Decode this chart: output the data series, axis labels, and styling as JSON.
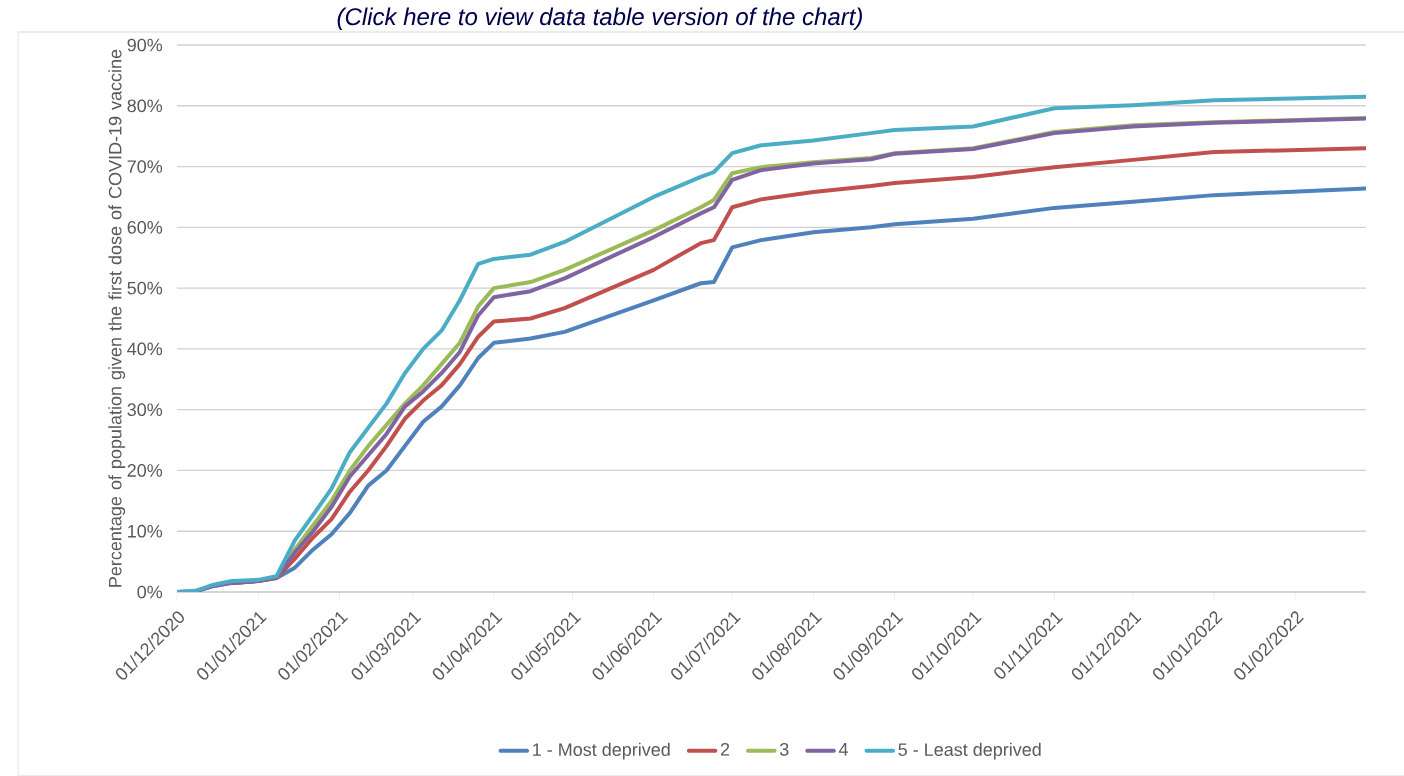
{
  "chart_data": {
    "type": "line",
    "ylabel": "Percentage of population given the first dose of COVID-19 vaccine",
    "annotations": [
      "(Click here to view data table version of the chart)"
    ],
    "x": [
      "2020-12-01",
      "2020-12-08",
      "2020-12-15",
      "2020-12-22",
      "2021-01-01",
      "2021-01-08",
      "2021-01-15",
      "2021-01-22",
      "2021-01-29",
      "2021-02-05",
      "2021-02-12",
      "2021-02-19",
      "2021-02-26",
      "2021-03-05",
      "2021-03-12",
      "2021-03-19",
      "2021-03-26",
      "2021-04-01",
      "2021-04-15",
      "2021-04-28",
      "2021-06-01",
      "2021-06-19",
      "2021-06-24",
      "2021-07-01",
      "2021-07-12",
      "2021-08-01",
      "2021-08-23",
      "2021-09-01",
      "2021-10-01",
      "2021-11-01",
      "2021-12-01",
      "2022-01-01",
      "2022-02-28"
    ],
    "series": [
      {
        "name": "1 - Most deprived",
        "color": "#4f81bd",
        "values": [
          0,
          0.1,
          1.0,
          1.5,
          1.8,
          2.3,
          4,
          7,
          9.5,
          13,
          17.5,
          20,
          24,
          28,
          30.5,
          34,
          38.5,
          41,
          41.7,
          42.8,
          48.0,
          50.8,
          51.0,
          56.7,
          57.9,
          59.2,
          60.0,
          60.5,
          61.4,
          63.2,
          64.2,
          65.3,
          66.4
        ]
      },
      {
        "name": "2",
        "color": "#c0504d",
        "values": [
          null,
          null,
          null,
          1.5,
          1.8,
          2.3,
          5.5,
          9,
          12,
          16.5,
          20,
          24,
          28.5,
          31.5,
          34,
          37.5,
          42,
          44.5,
          45,
          46.7,
          53.0,
          57.4,
          57.9,
          63.3,
          64.6,
          65.8,
          66.8,
          67.3,
          68.3,
          69.9,
          71.1,
          72.4,
          73.0
        ]
      },
      {
        "name": "3",
        "color": "#9bbb59",
        "values": [
          null,
          null,
          null,
          null,
          null,
          2.4,
          7,
          11,
          15,
          20,
          24,
          27.5,
          31,
          34,
          37.5,
          41,
          47,
          50,
          51,
          53.0,
          59.5,
          63.3,
          64.5,
          68.9,
          69.9,
          70.7,
          71.4,
          72.2,
          73.0,
          75.7,
          76.8,
          77.3,
          78.0
        ]
      },
      {
        "name": "4",
        "color": "#8064a2",
        "values": [
          0,
          0.1,
          1.0,
          1.5,
          1.8,
          2.4,
          6.5,
          10,
          14,
          19,
          22.5,
          26,
          30.5,
          33,
          36,
          39.5,
          45.5,
          48.5,
          49.5,
          51.6,
          58.4,
          62.3,
          63.3,
          67.8,
          69.4,
          70.5,
          71.2,
          72.1,
          72.9,
          75.5,
          76.6,
          77.2,
          77.9
        ]
      },
      {
        "name": "5 - Least deprived",
        "color": "#4bacc6",
        "values": [
          0,
          0.2,
          1.2,
          1.8,
          2.0,
          2.6,
          8.5,
          12.7,
          17,
          23,
          27,
          31,
          36,
          40,
          43,
          48,
          54,
          54.8,
          55.5,
          57.6,
          65.0,
          68.3,
          69.1,
          72.2,
          73.5,
          74.3,
          75.5,
          76.0,
          76.6,
          79.6,
          80.1,
          80.9,
          81.5
        ]
      }
    ],
    "xlim": [
      "2020-12-01",
      "2022-02-28"
    ],
    "xticks": [
      {
        "value": "2020-12-01",
        "label": "01/12/2020"
      },
      {
        "value": "2021-01-01",
        "label": "01/01/2021"
      },
      {
        "value": "2021-02-01",
        "label": "01/02/2021"
      },
      {
        "value": "2021-03-01",
        "label": "01/03/2021"
      },
      {
        "value": "2021-04-01",
        "label": "01/04/2021"
      },
      {
        "value": "2021-05-01",
        "label": "01/05/2021"
      },
      {
        "value": "2021-06-01",
        "label": "01/06/2021"
      },
      {
        "value": "2021-07-01",
        "label": "01/07/2021"
      },
      {
        "value": "2021-08-01",
        "label": "01/08/2021"
      },
      {
        "value": "2021-09-01",
        "label": "01/09/2021"
      },
      {
        "value": "2021-10-01",
        "label": "01/10/2021"
      },
      {
        "value": "2021-11-01",
        "label": "01/11/2021"
      },
      {
        "value": "2021-12-01",
        "label": "01/12/2021"
      },
      {
        "value": "2022-01-01",
        "label": "01/01/2022"
      },
      {
        "value": "2022-02-01",
        "label": "01/02/2022"
      }
    ],
    "ylim": [
      0,
      90
    ],
    "yticks": [
      {
        "value": 0,
        "label": "0%"
      },
      {
        "value": 10,
        "label": "10%"
      },
      {
        "value": 20,
        "label": "20%"
      },
      {
        "value": 30,
        "label": "30%"
      },
      {
        "value": 40,
        "label": "40%"
      },
      {
        "value": 50,
        "label": "50%"
      },
      {
        "value": 60,
        "label": "60%"
      },
      {
        "value": 70,
        "label": "70%"
      },
      {
        "value": 80,
        "label": "80%"
      },
      {
        "value": 90,
        "label": "90%"
      }
    ],
    "grid": "y",
    "legend": "bottom"
  }
}
